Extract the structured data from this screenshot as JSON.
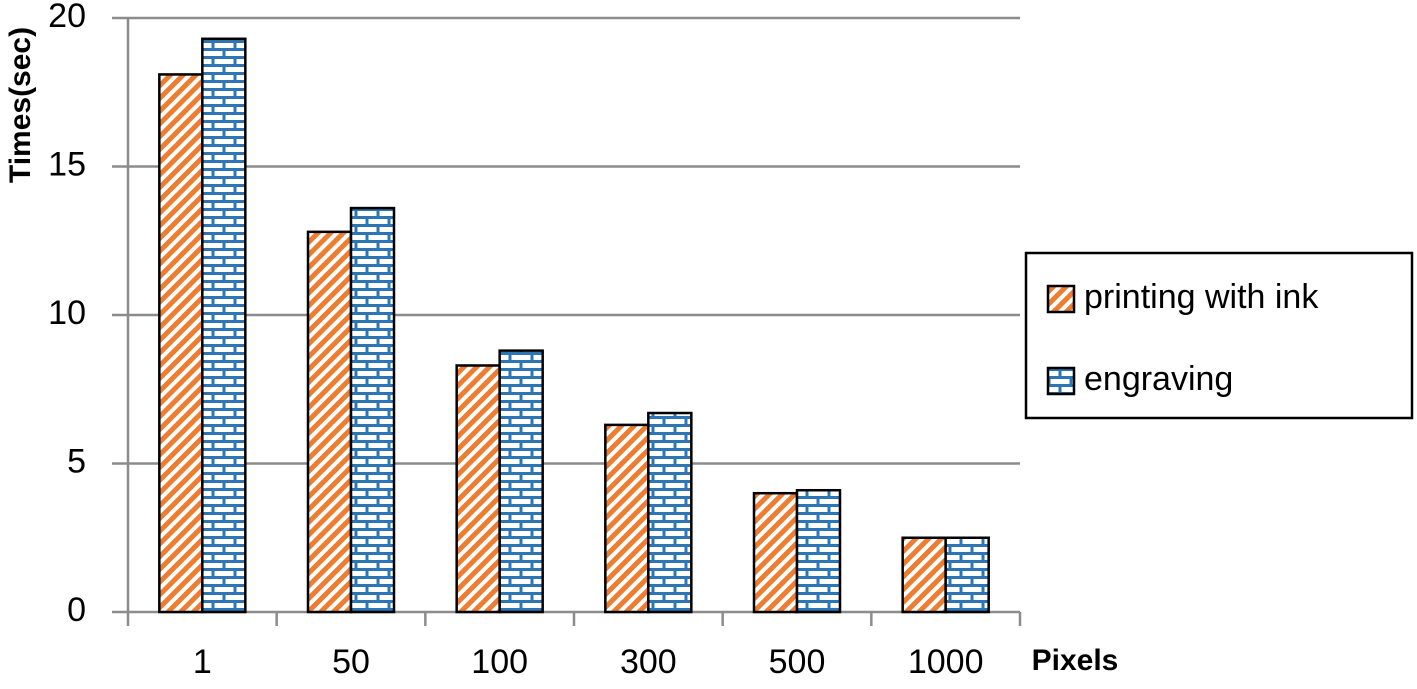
{
  "chart_data": {
    "type": "bar",
    "x_label": "Pixels",
    "y_label": "Times(sec)",
    "categories": [
      "1",
      "50",
      "100",
      "300",
      "500",
      "1000"
    ],
    "series": [
      {
        "name": "printing with ink",
        "color": "#ed7d31",
        "pattern": "diagonal",
        "values": [
          18.1,
          12.8,
          8.3,
          6.3,
          4.0,
          2.5
        ]
      },
      {
        "name": "engraving",
        "color": "#2e75b6",
        "pattern": "brick",
        "values": [
          19.3,
          13.6,
          8.8,
          6.7,
          4.1,
          2.5
        ]
      }
    ],
    "ylim": [
      0,
      20
    ],
    "yticks": [
      0,
      5,
      10,
      15,
      20
    ],
    "grid": true,
    "legend": "right"
  }
}
